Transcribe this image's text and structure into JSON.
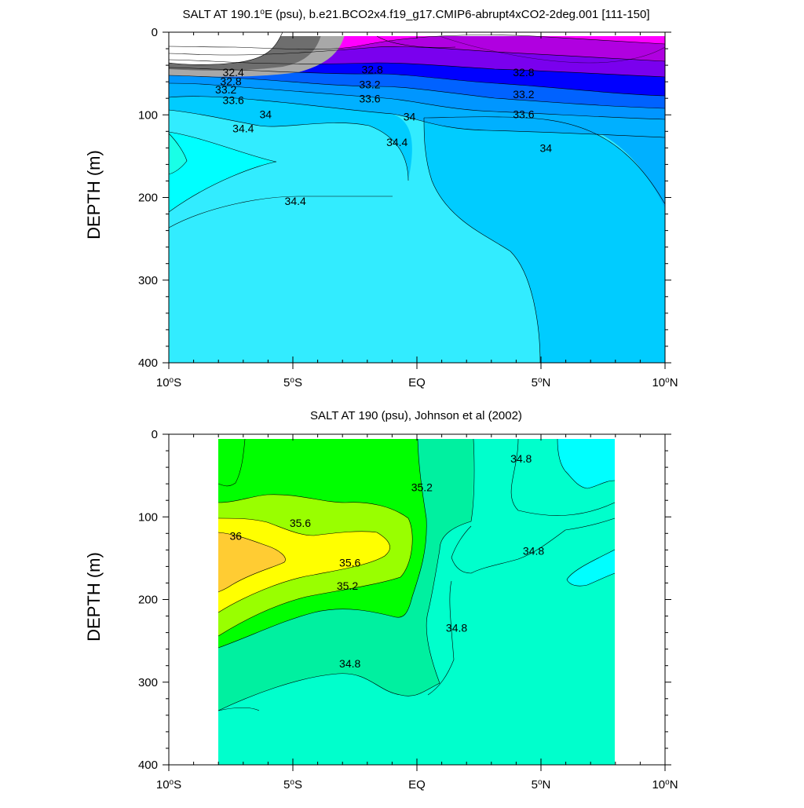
{
  "chart_data": [
    {
      "type": "contour",
      "title_main": "SALT AT 190.1",
      "title_sup": "o",
      "title_rest": "E (psu), b.e21.BCO2x4.f19_g17.CMIP6-abrupt4xCO2-2deg.001 [111-150]",
      "ylabel": "DEPTH (m)",
      "xlim": [
        -10,
        10
      ],
      "ylim": [
        400,
        0
      ],
      "x_ticks": [
        {
          "value": -10,
          "pre": "10",
          "sup": "o",
          "post": "S"
        },
        {
          "value": -5,
          "pre": "5",
          "sup": "o",
          "post": "S"
        },
        {
          "value": 0,
          "pre": "EQ",
          "sup": "",
          "post": ""
        },
        {
          "value": 5,
          "pre": "5",
          "sup": "o",
          "post": "N"
        },
        {
          "value": 10,
          "pre": "10",
          "sup": "o",
          "post": "N"
        }
      ],
      "y_ticks": [
        "0",
        "100",
        "200",
        "300",
        "400"
      ],
      "contour_labels": [
        {
          "text": "32.4",
          "x": -7.4,
          "y": 53
        },
        {
          "text": "32.8",
          "x": -7.5,
          "y": 64
        },
        {
          "text": "33.2",
          "x": -7.7,
          "y": 74
        },
        {
          "text": "33.6",
          "x": -7.4,
          "y": 87
        },
        {
          "text": "32.8",
          "x": -1.8,
          "y": 50
        },
        {
          "text": "33.2",
          "x": -1.9,
          "y": 68
        },
        {
          "text": "33.6",
          "x": -1.9,
          "y": 85
        },
        {
          "text": "32.8",
          "x": 4.3,
          "y": 53
        },
        {
          "text": "33.2",
          "x": 4.3,
          "y": 80
        },
        {
          "text": "33.6",
          "x": 4.3,
          "y": 104
        },
        {
          "text": "34",
          "x": -6.1,
          "y": 104
        },
        {
          "text": "34",
          "x": -0.3,
          "y": 107
        },
        {
          "text": "34",
          "x": 5.2,
          "y": 145
        },
        {
          "text": "34.4",
          "x": -7.0,
          "y": 121
        },
        {
          "text": "34.4",
          "x": -0.8,
          "y": 138
        },
        {
          "text": "34.4",
          "x": -4.9,
          "y": 209
        }
      ]
    },
    {
      "type": "contour",
      "title_main": "SALT AT 190 (psu), Johnson et al (2002)",
      "title_sup": "",
      "title_rest": "",
      "ylabel": "DEPTH (m)",
      "xlim": [
        -10,
        10
      ],
      "ylim": [
        400,
        0
      ],
      "x_ticks": [
        {
          "value": -10,
          "pre": "10",
          "sup": "o",
          "post": "S"
        },
        {
          "value": -5,
          "pre": "5",
          "sup": "o",
          "post": "S"
        },
        {
          "value": 0,
          "pre": "EQ",
          "sup": "",
          "post": ""
        },
        {
          "value": 5,
          "pre": "5",
          "sup": "o",
          "post": "N"
        },
        {
          "value": 10,
          "pre": "10",
          "sup": "o",
          "post": "N"
        }
      ],
      "y_ticks": [
        "0",
        "100",
        "200",
        "300",
        "400"
      ],
      "contour_labels": [
        {
          "text": "35.6",
          "x": -4.7,
          "y": 112
        },
        {
          "text": "36",
          "x": -7.3,
          "y": 128
        },
        {
          "text": "35.6",
          "x": -2.7,
          "y": 160
        },
        {
          "text": "35.2",
          "x": -2.8,
          "y": 188
        },
        {
          "text": "35.2",
          "x": 0.2,
          "y": 69
        },
        {
          "text": "34.8",
          "x": 4.2,
          "y": 34
        },
        {
          "text": "34.8",
          "x": 4.7,
          "y": 146
        },
        {
          "text": "34.8",
          "x": 1.6,
          "y": 239
        },
        {
          "text": "34.8",
          "x": -2.7,
          "y": 282
        }
      ]
    }
  ],
  "colors": {
    "black_fill": "#ffffff",
    "dark_gray": "#6e6e6e",
    "light_gray": "#a8a8a8",
    "magenta": "#ff00ff",
    "purple": "#b000e0",
    "violet": "#7a00ee",
    "blue": "#0000ff",
    "mid_blue": "#0062ff",
    "sky_blue": "#0096ff",
    "deep_sky": "#00b0ff",
    "cyan_blue": "#00ccff",
    "light_cyan": "#32ecff",
    "cyan": "#00ffff",
    "aqua": "#19ffe6",
    "mint": "#00ffcc",
    "sea_green": "#00f0a0",
    "green": "#00ff00",
    "lime": "#99ff00",
    "yellow": "#ffff00",
    "orange": "#ffcc33"
  }
}
